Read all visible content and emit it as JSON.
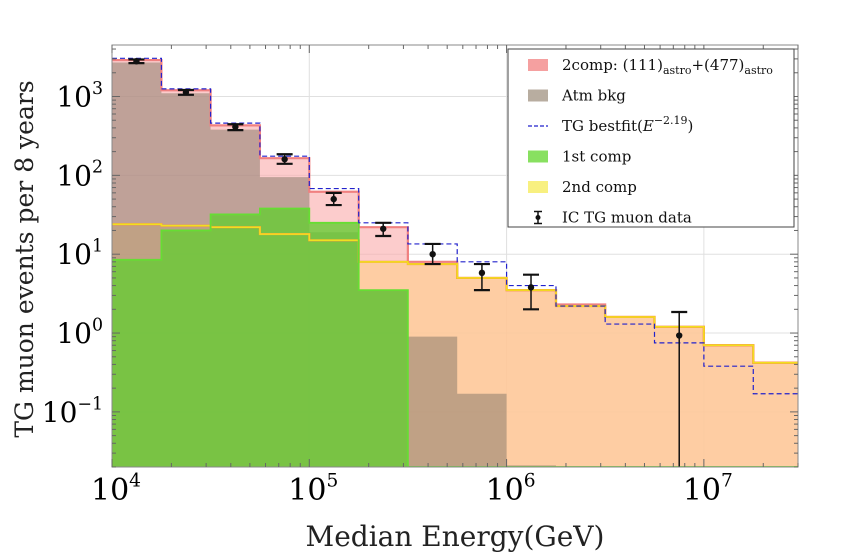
{
  "chart_data": {
    "type": "step-histogram",
    "title": "",
    "xlabel": "Median Energy(GeV)",
    "ylabel": "TG muon events per 8 years",
    "x_scale": "log",
    "y_scale": "log",
    "xlim": [
      10000,
      30000000
    ],
    "ylim": [
      0.02,
      4500
    ],
    "grid": true,
    "legend_position": "top-right",
    "x_ticks": [
      {
        "value": 10000,
        "base": "10",
        "exp": "4"
      },
      {
        "value": 100000,
        "base": "10",
        "exp": "5"
      },
      {
        "value": 1000000,
        "base": "10",
        "exp": "6"
      },
      {
        "value": 10000000,
        "base": "10",
        "exp": "7"
      }
    ],
    "y_ticks": [
      {
        "value": 0.1,
        "base": "10",
        "exp": "−1"
      },
      {
        "value": 1,
        "base": "10",
        "exp": "0"
      },
      {
        "value": 10,
        "base": "10",
        "exp": "1"
      },
      {
        "value": 100,
        "base": "10",
        "exp": "2"
      },
      {
        "value": 1000,
        "base": "10",
        "exp": "3"
      }
    ],
    "bin_edges": [
      10000,
      17800,
      31600,
      56200,
      100000,
      178000,
      316000,
      562000,
      1000000,
      1780000,
      3160000,
      5620000,
      10000000,
      17800000,
      30000000
    ],
    "series": [
      {
        "key": "twocomp",
        "name": "2comp",
        "color": "#f08080",
        "fill": "rgba(250,170,170,0.6)",
        "values": [
          2900,
          1200,
          430,
          165,
          62,
          22,
          8.0,
          5.0,
          3.5,
          2.3,
          1.6,
          1.2,
          0.7,
          0.42
        ]
      },
      {
        "key": "atm",
        "name": "Atm bkg",
        "color": "#8a7d68",
        "fill": "rgba(140,125,110,0.55)",
        "values": [
          2700,
          1100,
          380,
          95,
          19,
          3.5,
          0.9,
          0.17,
          0.021,
          0.02,
          0.02,
          0.02,
          0.02,
          0.02
        ]
      },
      {
        "key": "first",
        "name": "1st comp",
        "color": "#66dd33",
        "fill": "rgba(102,204,51,0.8)",
        "values": [
          8.5,
          20,
          32,
          38,
          25,
          3.5,
          0.02,
          0.02,
          0.02,
          0.02,
          0.02,
          0.02,
          0.02,
          0.02
        ]
      },
      {
        "key": "second",
        "name": "2nd comp",
        "color": "#f0e020",
        "edge": "#ff9933",
        "fill": "rgba(255,206,150,0.75)",
        "values": [
          24,
          23,
          22,
          18,
          15,
          8.0,
          7.5,
          5.0,
          3.5,
          2.2,
          1.6,
          1.2,
          0.7,
          0.42
        ]
      },
      {
        "key": "bestfit",
        "name": "TG bestfit",
        "color": "#2222cc",
        "values": [
          3050,
          1250,
          460,
          175,
          68,
          25,
          13.5,
          8.0,
          4.0,
          2.2,
          1.3,
          0.75,
          0.38,
          0.17
        ]
      }
    ],
    "data_points": {
      "name": "IC TG muon data",
      "x": [
        13300,
        23700,
        42200,
        75000,
        133000,
        237000,
        422000,
        750000,
        1330000,
        7500000
      ],
      "y": [
        2800,
        1130,
        410,
        160,
        50,
        21,
        10,
        5.8,
        3.8,
        0.93
      ],
      "y_low": [
        2650,
        1050,
        375,
        140,
        42,
        17,
        7.5,
        3.5,
        2.0,
        0.02
      ],
      "y_high": [
        2950,
        1210,
        445,
        185,
        60,
        25,
        13.5,
        7.5,
        5.5,
        1.85
      ]
    },
    "legend": [
      {
        "key": "twocomp",
        "text": "2comp: (111)",
        "sub1": "astro",
        "mid": "+(477)",
        "sub2": "astro"
      },
      {
        "key": "atm",
        "text": "Atm bkg"
      },
      {
        "key": "bestfit",
        "text": "TG bestfit(",
        "italic": "E",
        "sup": "−2.19",
        "close": ")"
      },
      {
        "key": "first",
        "text": "1st comp"
      },
      {
        "key": "second",
        "text": "2nd comp"
      },
      {
        "key": "data",
        "text": "IC TG muon data"
      }
    ]
  }
}
